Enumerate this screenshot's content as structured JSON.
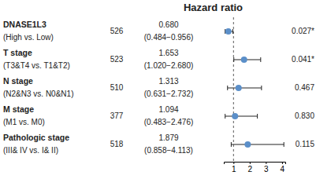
{
  "chart_data": {
    "type": "forest",
    "title": "Hazard ratio",
    "categories": [
      "DNASE1L3",
      "T stage",
      "N stage",
      "M stage",
      "Pathologic stage"
    ],
    "comparisons": [
      "(High vs. Low)",
      "(T3&T4 vs. T1&T2)",
      "(N2&N3 vs. N0&N1)",
      "(M1 vs. M0)",
      "(III& IV vs. I& II)"
    ],
    "n": [
      526,
      523,
      510,
      377,
      518
    ],
    "values": [
      0.68,
      1.653,
      1.313,
      1.094,
      1.879
    ],
    "value_labels": [
      "0.680",
      "1.653",
      "1.313",
      "1.094",
      "1.879"
    ],
    "ci_low": [
      0.484,
      1.02,
      0.631,
      0.483,
      0.858
    ],
    "ci_high": [
      0.956,
      2.68,
      2.732,
      2.476,
      4.113
    ],
    "ci_labels": [
      "(0.484−0.956)",
      "(1.020−2.680)",
      "(0.631−2.732)",
      "(0.483−2.476)",
      "(0.858−4.113)"
    ],
    "p_values": [
      "0.027*",
      "0.041*",
      "0.467",
      "0.830",
      "0.115"
    ],
    "reference": 1,
    "color": "#5b8fc9",
    "xlim": [
      0.4,
      4.2
    ],
    "xticks": [
      1,
      2,
      3,
      4
    ]
  }
}
